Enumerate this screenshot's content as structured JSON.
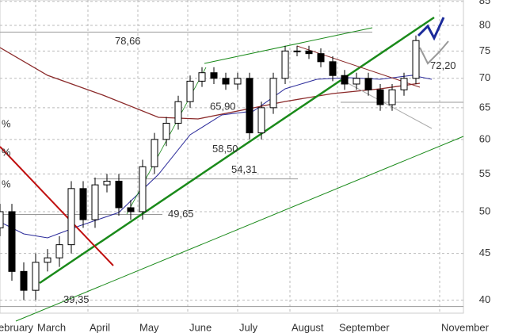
{
  "chart_data": {
    "type": "candlestick",
    "x": [
      0,
      5,
      10,
      15,
      20,
      25,
      30,
      35,
      40,
      45,
      50,
      55,
      60,
      65,
      70,
      75,
      80,
      85,
      90,
      95,
      100,
      105,
      110,
      115,
      120,
      125,
      130,
      135,
      140,
      145,
      150,
      155,
      160,
      165,
      170,
      175
    ],
    "open": [
      48,
      50,
      43,
      41,
      44,
      44.5,
      46,
      53,
      49,
      53.5,
      54,
      50.5,
      50,
      56,
      60,
      62.5,
      66,
      69.5,
      71,
      70,
      69,
      70,
      61,
      65,
      70,
      75,
      75,
      74.5,
      73,
      70.5,
      69,
      70,
      68,
      65.5,
      68,
      70
    ],
    "high": [
      51,
      51,
      44,
      45,
      45.5,
      47,
      54,
      54,
      54.5,
      55,
      55,
      51.5,
      57,
      61,
      63.5,
      67,
      70.5,
      72,
      72,
      71,
      71,
      71,
      66,
      71,
      76,
      76,
      76,
      75.5,
      74,
      71.5,
      71,
      71,
      69,
      69,
      71,
      78
    ],
    "low": [
      47,
      42,
      40,
      40,
      43,
      43.5,
      45,
      48,
      48,
      52.5,
      49.5,
      49,
      49,
      55,
      59,
      61.5,
      65,
      68.5,
      69,
      68,
      68,
      60,
      60,
      64,
      69,
      74,
      73.5,
      72,
      69.5,
      68,
      68,
      67,
      64.5,
      64.5,
      67,
      69
    ],
    "close": [
      50,
      43,
      41,
      44,
      44.5,
      46,
      53,
      49,
      53.5,
      54,
      50.5,
      50,
      56,
      60,
      62.5,
      66,
      69.5,
      71,
      70,
      69,
      70,
      61,
      65,
      70,
      75,
      75,
      74.5,
      73,
      70.5,
      69,
      70,
      68,
      65.5,
      68,
      70,
      77
    ],
    "up_color": "#ffffff",
    "down_color": "#000000",
    "xlim": [
      0,
      195
    ],
    "xticks": [
      {
        "value": -4,
        "label": "February"
      },
      {
        "value": 15,
        "label": "March"
      },
      {
        "value": 37,
        "label": "April"
      },
      {
        "value": 58,
        "label": "May"
      },
      {
        "value": 79,
        "label": "June"
      },
      {
        "value": 100,
        "label": "July"
      },
      {
        "value": 122,
        "label": "August"
      },
      {
        "value": 142,
        "label": "September"
      },
      {
        "value": 185,
        "label": "November"
      }
    ],
    "ylim": [
      38.7,
      85.3
    ],
    "yticks": [
      40,
      45,
      50,
      55,
      60,
      65,
      70,
      75,
      80,
      85
    ],
    "log_y": true,
    "grid": true,
    "levels": [
      {
        "value": 78.66,
        "label": "78,66"
      },
      {
        "value": 65.9,
        "label": "65,90"
      },
      {
        "value": 58.5,
        "label": "58,50"
      },
      {
        "value": 54.31,
        "label": "54,31"
      },
      {
        "value": 49.65,
        "label": "49,65"
      },
      {
        "value": 39.35,
        "label": "39,35"
      },
      {
        "value": 72.2,
        "label": "72,20"
      }
    ],
    "pct_labels": [
      "%",
      "%",
      "%"
    ]
  }
}
